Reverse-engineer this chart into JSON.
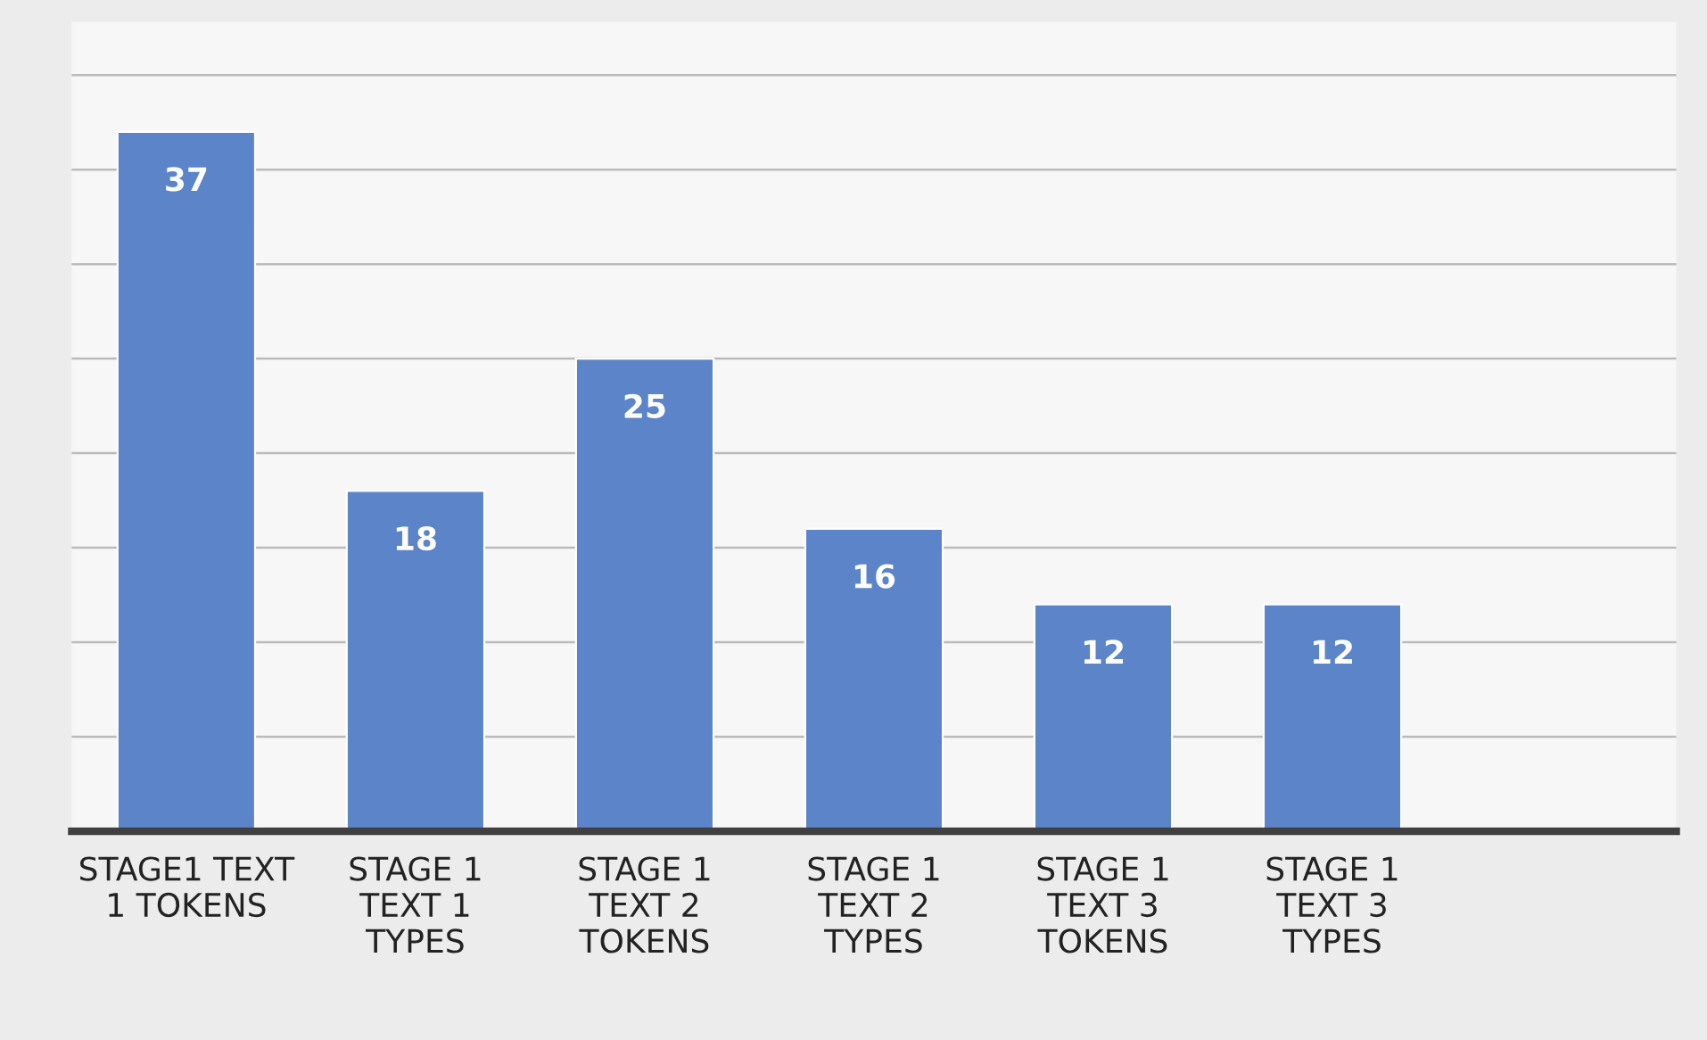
{
  "chart_data": {
    "type": "bar",
    "categories": [
      "STAGE1 TEXT\n1 TOKENS",
      "STAGE 1\nTEXT 1\nTYPES",
      "STAGE 1\nTEXT 2\nTOKENS",
      "STAGE 1\nTEXT 2\nTYPES",
      "STAGE 1\nTEXT 3\nTOKENS",
      "STAGE 1\nTEXT 3\nTYPES",
      null
    ],
    "values": [
      37,
      18,
      25,
      16,
      12,
      12,
      null
    ],
    "color": "#5b84c9",
    "data_labels": true,
    "ylim": [
      0,
      42.8
    ],
    "yticks": [
      {
        "value": 5,
        "label": null
      },
      {
        "value": 10,
        "label": null
      },
      {
        "value": 15,
        "label": null
      },
      {
        "value": 20,
        "label": null
      },
      {
        "value": 25,
        "label": null
      },
      {
        "value": 30,
        "label": null
      },
      {
        "value": 35,
        "label": null
      },
      {
        "value": 40,
        "label": null
      }
    ],
    "tick_labels": "x",
    "grid": "y"
  }
}
